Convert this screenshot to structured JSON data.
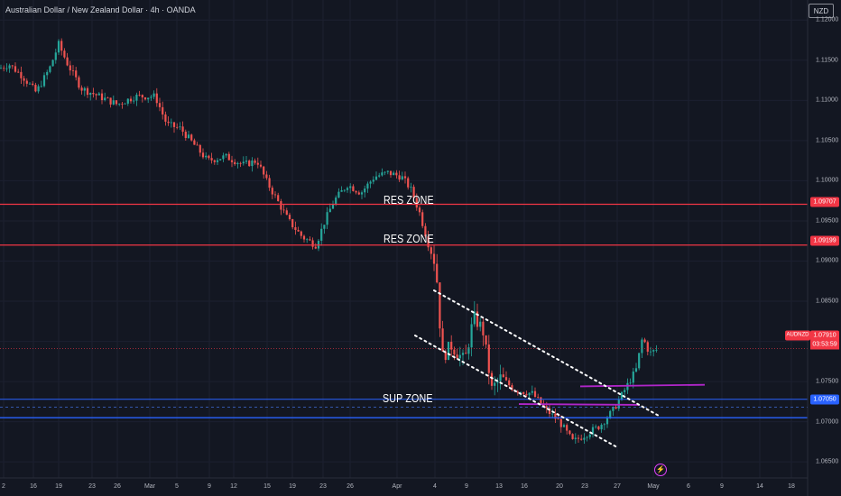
{
  "header": {
    "title": "Australian Dollar / New Zealand Dollar · 4h · OANDA"
  },
  "currency_button": "NZD",
  "y_axis_ticks": [
    "1.12000",
    "1.11500",
    "1.11000",
    "1.10500",
    "1.10000",
    "1.09500",
    "1.09000",
    "1.08500",
    "1.08000",
    "1.07500",
    "1.07000",
    "1.06500"
  ],
  "y_axis_values": [
    1.12,
    1.115,
    1.11,
    1.105,
    1.1,
    1.095,
    1.09,
    1.085,
    1.08,
    1.075,
    1.07,
    1.065
  ],
  "x_axis_ticks": [
    "2",
    "16",
    "19",
    "23",
    "26",
    "Mar",
    "5",
    "9",
    "12",
    "15",
    "19",
    "23",
    "26",
    "Apr",
    "4",
    "9",
    "13",
    "16",
    "20",
    "23",
    "27",
    "May",
    "6",
    "9",
    "14",
    "18"
  ],
  "price_tags": {
    "res_upper": "1.09707",
    "res_lower": "1.09199",
    "last": "1.07910",
    "countdown": "03:53:59",
    "sup": "1.07050",
    "symbol": "AUDNZD"
  },
  "colors": {
    "background": "#131722",
    "up": "#26a69a",
    "down": "#ef5350",
    "res": "#f23645",
    "sup": "#2962ff",
    "trend": "#ffffff",
    "level": "#b026c9"
  },
  "zones": {
    "res1": "RES ZONE",
    "res2": "RES ZONE",
    "sup": "SUP ZONE"
  },
  "event_icon": "lightning-icon",
  "chart_data": {
    "type": "candlestick",
    "symbol": "AUDNZD",
    "interval": "4h",
    "ylim": [
      1.063,
      1.1225
    ],
    "horizontal_lines": [
      {
        "name": "RES ZONE",
        "value": 1.09707
      },
      {
        "name": "RES ZONE",
        "value": 1.09199
      },
      {
        "name": "SUP ZONE",
        "value": 1.0705
      },
      {
        "name": "sup-upper",
        "value": 1.0728
      }
    ],
    "last_price": 1.0791,
    "close_path": [
      [
        0,
        1.114
      ],
      [
        10,
        1.1145
      ],
      [
        25,
        1.113
      ],
      [
        40,
        1.111
      ],
      [
        55,
        1.114
      ],
      [
        65,
        1.117
      ],
      [
        75,
        1.1145
      ],
      [
        90,
        1.1115
      ],
      [
        110,
        1.1105
      ],
      [
        130,
        1.1095
      ],
      [
        150,
        1.1105
      ],
      [
        172,
        1.1105
      ],
      [
        185,
        1.107
      ],
      [
        200,
        1.1065
      ],
      [
        215,
        1.1045
      ],
      [
        230,
        1.1025
      ],
      [
        250,
        1.103
      ],
      [
        270,
        1.102
      ],
      [
        285,
        1.1025
      ],
      [
        295,
        1.1
      ],
      [
        310,
        1.097
      ],
      [
        320,
        1.095
      ],
      [
        335,
        1.093
      ],
      [
        350,
        1.092
      ],
      [
        360,
        1.095
      ],
      [
        370,
        1.0975
      ],
      [
        385,
        1.0995
      ],
      [
        400,
        1.0985
      ],
      [
        415,
        1.1005
      ],
      [
        430,
        1.101
      ],
      [
        445,
        1.1005
      ],
      [
        455,
        1.099
      ],
      [
        465,
        1.096
      ],
      [
        475,
        1.092
      ],
      [
        483,
        1.0895
      ],
      [
        490,
        1.078
      ],
      [
        500,
        1.0795
      ],
      [
        515,
        1.0775
      ],
      [
        525,
        1.083
      ],
      [
        535,
        1.0815
      ],
      [
        545,
        1.074
      ],
      [
        555,
        1.0755
      ],
      [
        570,
        1.074
      ],
      [
        590,
        1.0735
      ],
      [
        605,
        1.0715
      ],
      [
        620,
        1.07
      ],
      [
        635,
        1.0675
      ],
      [
        650,
        1.0685
      ],
      [
        665,
        1.0695
      ],
      [
        680,
        1.0715
      ],
      [
        695,
        1.0745
      ],
      [
        705,
        1.0765
      ],
      [
        712,
        1.0805
      ],
      [
        720,
        1.0785
      ],
      [
        730,
        1.0791
      ]
    ]
  }
}
